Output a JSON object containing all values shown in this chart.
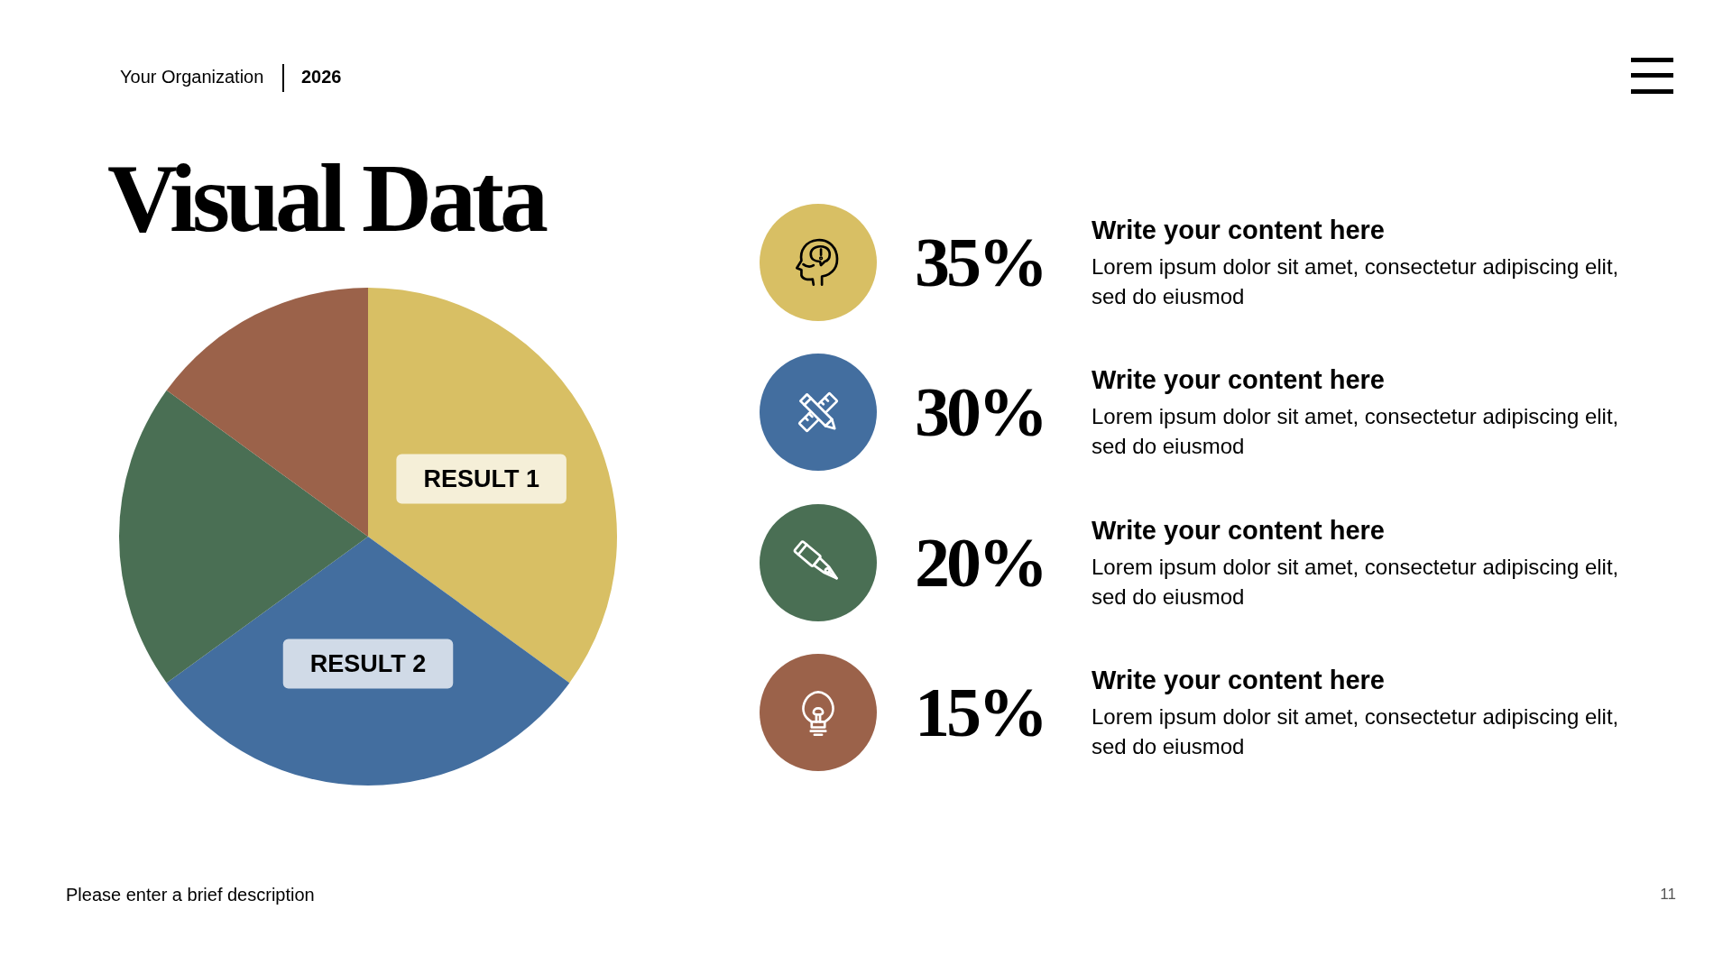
{
  "chart_data": [
    {
      "type": "pie",
      "title": "Visual Data",
      "categories": [
        "RESULT 1",
        "RESULT 2",
        null,
        null
      ],
      "values": [
        35,
        30,
        20,
        15
      ],
      "colors": [
        "#d8bf64",
        "#436e9f",
        "#4a6f54",
        "#9b624a"
      ],
      "annotations": [
        "Your Organization",
        "2026",
        "Please enter a brief description",
        "11"
      ]
    },
    {
      "type": "other",
      "annotations": [
        "35%",
        "Write your content here",
        "Lorem ipsum dolor sit amet, consectetur adipiscing elit, sed do eiusmod",
        "30%",
        "Write your content here",
        "Lorem ipsum dolor sit amet, consectetur adipiscing elit, sed do eiusmod",
        "20%",
        "Write your content here",
        "Lorem ipsum dolor sit amet, consectetur adipiscing elit, sed do eiusmod",
        "15%",
        "Write your content here",
        "Lorem ipsum dolor sit amet, consectetur adipiscing elit, sed do eiusmod"
      ]
    }
  ]
}
